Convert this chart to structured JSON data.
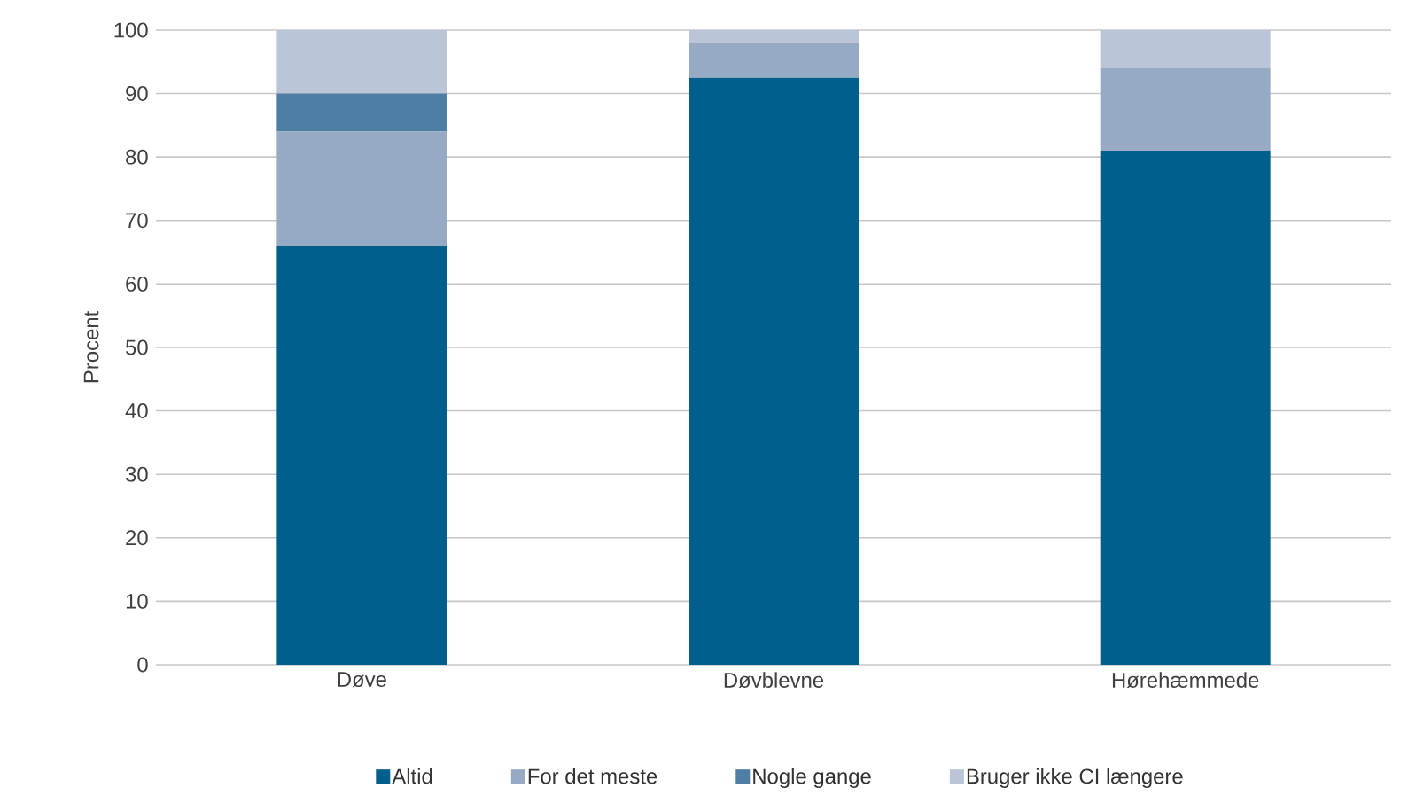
{
  "chart_data": {
    "type": "bar",
    "stacked": true,
    "ylabel": "Procent",
    "categories": [
      "Døve",
      "Døvblevne",
      "Hørehæmmede"
    ],
    "series": [
      {
        "name": "Altid",
        "color": "#005f8b",
        "values": [
          66,
          92.5,
          81
        ]
      },
      {
        "name": "For det meste",
        "color": "#96abc3",
        "values": [
          18,
          5.5,
          13
        ]
      },
      {
        "name": "Nogle gange",
        "color": "#4f7ea4",
        "values": [
          6,
          0,
          0
        ]
      },
      {
        "name": "Bruger ikke CI længere",
        "color": "#bac6d8",
        "values": [
          10,
          2,
          6
        ]
      }
    ],
    "ylim": [
      0,
      100
    ],
    "yticks": [
      0,
      10,
      20,
      30,
      40,
      50,
      60,
      70,
      80,
      90,
      100
    ],
    "grid": "y",
    "legend": "bottom"
  }
}
